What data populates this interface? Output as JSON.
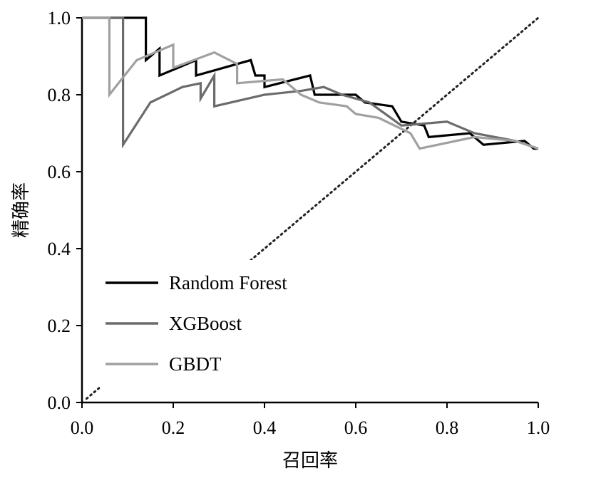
{
  "chart_data": {
    "type": "line",
    "xlabel": "召回率",
    "ylabel": "精确率",
    "xlim": [
      0,
      1
    ],
    "ylim": [
      0,
      1
    ],
    "x_ticks": [
      "0.0",
      "0.2",
      "0.4",
      "0.6",
      "0.8",
      "1.0"
    ],
    "y_ticks": [
      "0.0",
      "0.2",
      "0.4",
      "0.6",
      "0.8",
      "1.0"
    ],
    "grid": false,
    "legend_position": "lower-left",
    "reference_line": {
      "style": "dotted",
      "points": [
        [
          0.01,
          0.01
        ],
        [
          1.0,
          1.0
        ]
      ]
    },
    "series": [
      {
        "name": "Random Forest",
        "color": "#000000",
        "points": [
          [
            0.0,
            1.0
          ],
          [
            0.14,
            1.0
          ],
          [
            0.14,
            0.89
          ],
          [
            0.17,
            0.92
          ],
          [
            0.17,
            0.85
          ],
          [
            0.25,
            0.89
          ],
          [
            0.25,
            0.85
          ],
          [
            0.37,
            0.89
          ],
          [
            0.38,
            0.85
          ],
          [
            0.4,
            0.85
          ],
          [
            0.4,
            0.82
          ],
          [
            0.5,
            0.85
          ],
          [
            0.51,
            0.8
          ],
          [
            0.6,
            0.8
          ],
          [
            0.62,
            0.78
          ],
          [
            0.68,
            0.77
          ],
          [
            0.7,
            0.73
          ],
          [
            0.75,
            0.72
          ],
          [
            0.76,
            0.69
          ],
          [
            0.85,
            0.7
          ],
          [
            0.88,
            0.67
          ],
          [
            0.97,
            0.68
          ],
          [
            0.99,
            0.66
          ],
          [
            1.0,
            0.66
          ]
        ]
      },
      {
        "name": "XGBoost",
        "color": "#6b6b6b",
        "points": [
          [
            0.0,
            1.0
          ],
          [
            0.09,
            1.0
          ],
          [
            0.09,
            0.67
          ],
          [
            0.15,
            0.78
          ],
          [
            0.22,
            0.82
          ],
          [
            0.26,
            0.83
          ],
          [
            0.26,
            0.79
          ],
          [
            0.29,
            0.85
          ],
          [
            0.29,
            0.77
          ],
          [
            0.4,
            0.8
          ],
          [
            0.48,
            0.81
          ],
          [
            0.53,
            0.82
          ],
          [
            0.57,
            0.8
          ],
          [
            0.63,
            0.78
          ],
          [
            0.7,
            0.72
          ],
          [
            0.8,
            0.73
          ],
          [
            0.86,
            0.7
          ],
          [
            0.95,
            0.68
          ],
          [
            1.0,
            0.66
          ]
        ]
      },
      {
        "name": "GBDT",
        "color": "#a0a0a0",
        "points": [
          [
            0.0,
            1.0
          ],
          [
            0.06,
            1.0
          ],
          [
            0.06,
            0.8
          ],
          [
            0.12,
            0.89
          ],
          [
            0.2,
            0.93
          ],
          [
            0.2,
            0.87
          ],
          [
            0.29,
            0.91
          ],
          [
            0.34,
            0.88
          ],
          [
            0.34,
            0.83
          ],
          [
            0.44,
            0.84
          ],
          [
            0.48,
            0.8
          ],
          [
            0.52,
            0.78
          ],
          [
            0.58,
            0.77
          ],
          [
            0.6,
            0.75
          ],
          [
            0.65,
            0.74
          ],
          [
            0.72,
            0.7
          ],
          [
            0.74,
            0.66
          ],
          [
            0.86,
            0.69
          ],
          [
            0.95,
            0.68
          ],
          [
            1.0,
            0.66
          ]
        ]
      }
    ]
  }
}
